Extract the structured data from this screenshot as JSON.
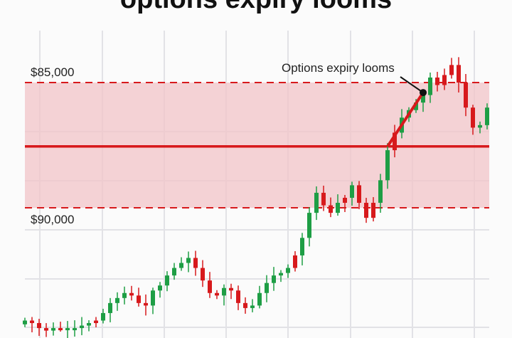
{
  "chart_data": {
    "type": "candlestick",
    "title": "options expiry looms",
    "xlabel": "",
    "ylabel": "",
    "y_axis_reversed": true,
    "ylim": [
      81700,
      95200
    ],
    "grid": true,
    "levels": [
      {
        "label": "$85,000",
        "value": 85000,
        "style": "dashed",
        "color": "#d7191c"
      },
      {
        "label": "$90,000",
        "value": 90000,
        "style": "dashed",
        "color": "#d7191c"
      },
      {
        "label": "",
        "value": 87550,
        "style": "solid",
        "color": "#d7191c"
      }
    ],
    "band": {
      "from": 85000,
      "to": 90000,
      "color": "#f2c4c8"
    },
    "annotation": {
      "text": "Options expiry looms",
      "value": 85400,
      "index": 56
    },
    "trend_line": {
      "from_index": 51,
      "from_value": 87550,
      "to_index": 56,
      "to_value": 85400,
      "color": "#d7191c"
    },
    "colors": {
      "up": "#1e9e45",
      "down": "#d7191c"
    },
    "closes": [
      94500,
      94600,
      94800,
      94900,
      94800,
      94800,
      94800,
      94800,
      94700,
      94600,
      94500,
      94200,
      93800,
      93600,
      93400,
      93500,
      93800,
      93900,
      93300,
      93100,
      92700,
      92400,
      92200,
      92000,
      92400,
      92900,
      93400,
      93500,
      93200,
      93300,
      93800,
      94000,
      93900,
      93400,
      93000,
      92700,
      92600,
      92400,
      91900,
      91200,
      90200,
      89400,
      89900,
      90200,
      89800,
      89600,
      89100,
      89800,
      90400,
      89800,
      88900,
      87700,
      87000,
      86400,
      86100,
      85800,
      85500,
      84800,
      85100,
      84700,
      84300,
      85000,
      86000,
      86800,
      86700,
      86000
    ]
  }
}
